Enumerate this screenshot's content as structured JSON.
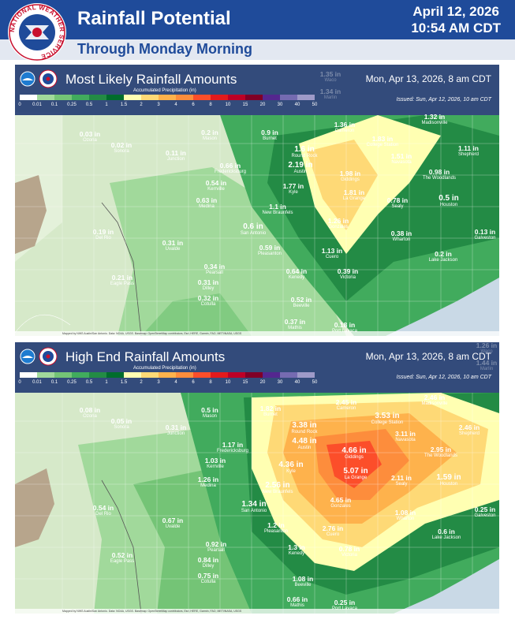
{
  "header": {
    "title": "Rainfall Potential",
    "subtitle": "Through Monday Morning",
    "date_line1": "April 12, 2026",
    "date_line2": "10:54 AM CDT",
    "logo_ring_text": "NATIONAL WEATHER SERVICE"
  },
  "legend": {
    "title": "Accumulated Precipitation (in)",
    "ticks": [
      "0",
      "0.01",
      "0.1",
      "0.25",
      "0.5",
      "1",
      "1.5",
      "2",
      "3",
      "4",
      "6",
      "8",
      "10",
      "15",
      "20",
      "30",
      "40",
      "50"
    ],
    "colors": [
      "#ffffff",
      "#a1d99b",
      "#74c476",
      "#41ab5d",
      "#238b45",
      "#006d2c",
      "#ffffb2",
      "#fed976",
      "#feb24c",
      "#fd8d3c",
      "#fc4e2a",
      "#e31a1c",
      "#bd0026",
      "#800026",
      "#54278f",
      "#756bb1",
      "#9e9ac8"
    ]
  },
  "colors": {
    "header_blue": "#1f4b9a",
    "banner_blue": "#1c3470",
    "terrain": "#b7a58c"
  },
  "panels": [
    {
      "id": "most-likely",
      "title": "Most Likely Rainfall Amounts",
      "valid": "Mon, Apr 13, 2026, 8 am CDT",
      "issued": "Issued: Sun, Apr 12, 2026, 10 am CDT",
      "credits": "Mapped by NWS Austin/San Antonio. Data: NOAA, USGS. Basemap: OpenStreetMap contributors, Esri, HERE, Garmin, FAO, METI/NASA, USGS",
      "labels": [
        {
          "name": "wfo-haze-1",
          "amount": "1.35 in",
          "town": "Waco",
          "faded": true
        },
        {
          "name": "wfo-haze-2",
          "amount": "1.34 in",
          "town": "Marlin",
          "faded": true
        },
        {
          "name": "ozona",
          "amount": "0.03 in",
          "town": "Ozona"
        },
        {
          "name": "sonora",
          "amount": "0.02 in",
          "town": "Sonora"
        },
        {
          "name": "junction",
          "amount": "0.11 in",
          "town": "Junction"
        },
        {
          "name": "mason",
          "amount": "0.2 in",
          "town": "Mason"
        },
        {
          "name": "burnet",
          "amount": "0.9 in",
          "town": "Burnet"
        },
        {
          "name": "cameron",
          "amount": "1.36 in",
          "town": "Cameron"
        },
        {
          "name": "madisonville",
          "amount": "1.32 in",
          "town": "Madisonville"
        },
        {
          "name": "round-rock",
          "amount": "1.6 in",
          "town": "Round Rock",
          "big": true
        },
        {
          "name": "college-station",
          "amount": "1.83 in",
          "town": "College Station"
        },
        {
          "name": "shepherd",
          "amount": "1.11 in",
          "town": "Shepherd"
        },
        {
          "name": "austin",
          "amount": "2.19 in",
          "town": "Austin",
          "big": true
        },
        {
          "name": "navasota",
          "amount": "1.51 in",
          "town": "Navasota"
        },
        {
          "name": "fredericksburg",
          "amount": "0.66 in",
          "town": "Fredericksburg"
        },
        {
          "name": "giddings",
          "amount": "1.98 in",
          "town": "Giddings"
        },
        {
          "name": "the-woodlands",
          "amount": "0.98 in",
          "town": "The Woodlands"
        },
        {
          "name": "kerrville",
          "amount": "0.54 in",
          "town": "Kerrville"
        },
        {
          "name": "kyle",
          "amount": "1.77 in",
          "town": "Kyle"
        },
        {
          "name": "la-grange",
          "amount": "1.81 in",
          "town": "La Grange"
        },
        {
          "name": "medina",
          "amount": "0.63 in",
          "town": "Medina"
        },
        {
          "name": "new-braunfels",
          "amount": "1.1 in",
          "town": "New Braunfels"
        },
        {
          "name": "sealy",
          "amount": "0.78 in",
          "town": "Sealy"
        },
        {
          "name": "houston",
          "amount": "0.5 in",
          "town": "Houston",
          "big": true
        },
        {
          "name": "san-antonio",
          "amount": "0.6 in",
          "town": "San Antonio",
          "big": true
        },
        {
          "name": "gonzales",
          "amount": "1.26 in",
          "town": "Gonzales"
        },
        {
          "name": "del-rio",
          "amount": "0.19 in",
          "town": "Del Rio"
        },
        {
          "name": "wharton",
          "amount": "0.38 in",
          "town": "Wharton"
        },
        {
          "name": "galveston",
          "amount": "0.13 in",
          "town": "Galveston"
        },
        {
          "name": "uvalde",
          "amount": "0.31 in",
          "town": "Uvalde"
        },
        {
          "name": "pleasanton",
          "amount": "0.59 in",
          "town": "Pleasanton"
        },
        {
          "name": "cuero",
          "amount": "1.13 in",
          "town": "Cuero"
        },
        {
          "name": "lake-jackson",
          "amount": "0.2 in",
          "town": "Lake Jackson"
        },
        {
          "name": "pearsall",
          "amount": "0.34 in",
          "town": "Pearsall"
        },
        {
          "name": "kenedy",
          "amount": "0.64 in",
          "town": "Kenedy"
        },
        {
          "name": "victoria",
          "amount": "0.39 in",
          "town": "Victoria"
        },
        {
          "name": "eagle-pass",
          "amount": "0.21 in",
          "town": "Eagle Pass"
        },
        {
          "name": "dilley",
          "amount": "0.31 in",
          "town": "Dilley"
        },
        {
          "name": "cotulla",
          "amount": "0.32 in",
          "town": "Cotulla"
        },
        {
          "name": "beeville",
          "amount": "0.52 in",
          "town": "Beeville"
        },
        {
          "name": "mathis",
          "amount": "0.37 in",
          "town": "Mathis"
        },
        {
          "name": "port-lavaca",
          "amount": "0.18 in",
          "town": "Port Lavaca"
        }
      ]
    },
    {
      "id": "high-end",
      "title": "High End Rainfall Amounts",
      "valid": "Mon, Apr 13, 2026, 8 am CDT",
      "issued": "Issued: Sun, Apr 12, 2026, 10 am CDT",
      "credits": "Mapped by NWS Austin/San Antonio. Data: NOAA, USGS. Basemap: OpenStreetMap contributors, Esri, HERE, Garmin, FAO, METI/NASA, USGS",
      "labels": [
        {
          "name": "wfo-haze-1",
          "amount": "1.26 in",
          "town": "Waco",
          "faded": true
        },
        {
          "name": "wfo-haze-2",
          "amount": "1.44 in",
          "town": "Marlin",
          "faded": true
        },
        {
          "name": "ozona",
          "amount": "0.08 in",
          "town": "Ozona"
        },
        {
          "name": "sonora",
          "amount": "0.05 in",
          "town": "Sonora"
        },
        {
          "name": "junction",
          "amount": "0.31 in",
          "town": "Junction"
        },
        {
          "name": "mason",
          "amount": "0.5 in",
          "town": "Mason"
        },
        {
          "name": "burnet",
          "amount": "1.82 in",
          "town": "Burnet"
        },
        {
          "name": "cameron",
          "amount": "2.45 in",
          "town": "Cameron"
        },
        {
          "name": "madisonville",
          "amount": "2.46 in",
          "town": "Madisonville"
        },
        {
          "name": "college-station",
          "amount": "3.53 in",
          "town": "College Station",
          "big": true
        },
        {
          "name": "round-rock",
          "amount": "3.38 in",
          "town": "Round Rock",
          "big": true
        },
        {
          "name": "navasota",
          "amount": "3.11 in",
          "town": "Navasota"
        },
        {
          "name": "shepherd",
          "amount": "2.46 in",
          "town": "Shepherd"
        },
        {
          "name": "fredericksburg",
          "amount": "1.17 in",
          "town": "Fredericksburg"
        },
        {
          "name": "austin",
          "amount": "4.48 in",
          "town": "Austin",
          "big": true
        },
        {
          "name": "giddings",
          "amount": "4.66 in",
          "town": "Giddings",
          "big": true
        },
        {
          "name": "the-woodlands",
          "amount": "2.95 in",
          "town": "The Woodlands"
        },
        {
          "name": "kerrville",
          "amount": "1.03 in",
          "town": "Kerrville"
        },
        {
          "name": "kyle",
          "amount": "4.36 in",
          "town": "Kyle",
          "big": true
        },
        {
          "name": "la-grange",
          "amount": "5.07 in",
          "town": "La Grange",
          "big": true
        },
        {
          "name": "sealy",
          "amount": "2.11 in",
          "town": "Sealy"
        },
        {
          "name": "houston",
          "amount": "1.59 in",
          "town": "Houston",
          "big": true
        },
        {
          "name": "medina",
          "amount": "1.26 in",
          "town": "Medina"
        },
        {
          "name": "new-braunfels",
          "amount": "2.56 in",
          "town": "New Braunfels",
          "big": true
        },
        {
          "name": "san-antonio",
          "amount": "1.34 in",
          "town": "San Antonio",
          "big": true
        },
        {
          "name": "gonzales",
          "amount": "4.65 in",
          "town": "Gonzales"
        },
        {
          "name": "del-rio",
          "amount": "0.54 in",
          "town": "Del Rio"
        },
        {
          "name": "uvalde",
          "amount": "0.67 in",
          "town": "Uvalde"
        },
        {
          "name": "pleasanton",
          "amount": "1.2 in",
          "town": "Pleasanton"
        },
        {
          "name": "cuero",
          "amount": "2.76 in",
          "town": "Cuero"
        },
        {
          "name": "wharton",
          "amount": "1.08 in",
          "town": "Wharton"
        },
        {
          "name": "galveston",
          "amount": "0.25 in",
          "town": "Galveston"
        },
        {
          "name": "lake-jackson",
          "amount": "0.6 in",
          "town": "Lake Jackson"
        },
        {
          "name": "pearsall",
          "amount": "0.92 in",
          "town": "Pearsall"
        },
        {
          "name": "eagle-pass",
          "amount": "0.52 in",
          "town": "Eagle Pass"
        },
        {
          "name": "kenedy",
          "amount": "1.3 in",
          "town": "Kenedy"
        },
        {
          "name": "victoria",
          "amount": "0.78 in",
          "town": "Victoria"
        },
        {
          "name": "dilley",
          "amount": "0.84 in",
          "town": "Dilley"
        },
        {
          "name": "cotulla",
          "amount": "0.75 in",
          "town": "Cotulla"
        },
        {
          "name": "beeville",
          "amount": "1.08 in",
          "town": "Beeville"
        },
        {
          "name": "mathis",
          "amount": "0.66 in",
          "town": "Mathis"
        },
        {
          "name": "port-lavaca",
          "amount": "0.25 in",
          "town": "Port Lavaca"
        }
      ]
    }
  ]
}
